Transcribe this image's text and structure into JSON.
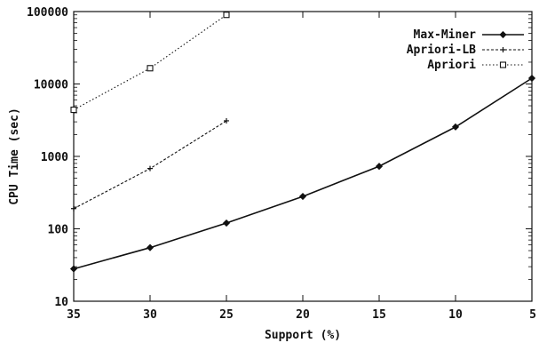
{
  "chart_data": {
    "type": "line",
    "xlabel": "Support (%)",
    "ylabel": "CPU Time (sec)",
    "x_scale": "linear",
    "x_reversed": true,
    "xlim": [
      35,
      5
    ],
    "y_scale": "log",
    "ylim": [
      10,
      100000
    ],
    "grid": false,
    "legend_position": "top-right",
    "x_ticks": [
      "35",
      "30",
      "25",
      "20",
      "15",
      "10",
      "5"
    ],
    "y_ticks": [
      "10",
      "100",
      "1000",
      "10000",
      "100000"
    ],
    "series": [
      {
        "name": "Max-Miner",
        "line_style": "solid",
        "marker": "diamond",
        "x": [
          35,
          30,
          25,
          20,
          15,
          10,
          5
        ],
        "y": [
          28,
          55,
          120,
          280,
          730,
          2550,
          12000
        ]
      },
      {
        "name": "Apriori-LB",
        "line_style": "dashed",
        "marker": "plus",
        "x": [
          35,
          30,
          25
        ],
        "y": [
          190,
          680,
          3100
        ]
      },
      {
        "name": "Apriori",
        "line_style": "dotted",
        "marker": "square",
        "x": [
          35,
          30,
          25
        ],
        "y": [
          4400,
          16500,
          90000
        ]
      }
    ]
  }
}
